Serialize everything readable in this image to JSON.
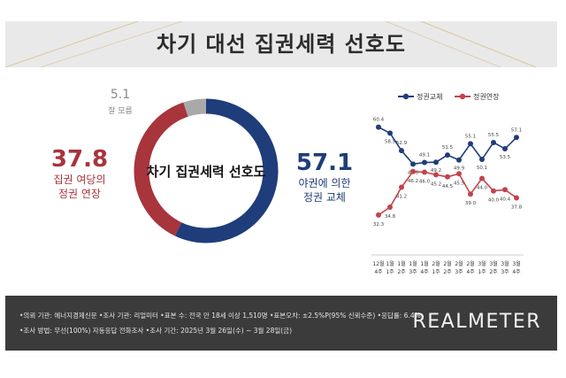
{
  "title": "차기 대선 집권세력 선호도",
  "donut": {
    "center_label": "차기 집권세력 선호도",
    "segments": [
      {
        "name": "야권에 의한 정권 교체",
        "value": 57.1,
        "color": "#1f3d7a"
      },
      {
        "name": "집권 여당의 정권 연장",
        "value": 37.8,
        "color": "#a8343c"
      },
      {
        "name": "잘 모름",
        "value": 5.1,
        "color": "#a9a9a9"
      }
    ],
    "labels": {
      "change_value": "57.1",
      "change_line1": "야권에 의한",
      "change_line2": "정권 교체",
      "extend_value": "37.8",
      "extend_line1": "집권 여당의",
      "extend_line2": "정권 연장",
      "unknown_value": "5.1",
      "unknown_line1": "잘 모름"
    }
  },
  "chart_data": {
    "type": "line",
    "legend_position": "top-right",
    "x": [
      "12월 4주",
      "1월 1주",
      "1월 2주",
      "1월 3주",
      "1월 4주",
      "2월 1주",
      "2월 2주",
      "2월 3주",
      "2월 4주",
      "3월 1주",
      "3월 2주",
      "3월 3주",
      "3월 4주"
    ],
    "x_top": [
      "12월",
      "1월",
      "1월",
      "1월",
      "1월",
      "2월",
      "2월",
      "2월",
      "2월",
      "3월",
      "3월",
      "3월",
      "3월"
    ],
    "x_bottom": [
      "4주",
      "1주",
      "2주",
      "3주",
      "4주",
      "1주",
      "2주",
      "3주",
      "4주",
      "1주",
      "2주",
      "3주",
      "4주"
    ],
    "ylim": [
      30,
      62
    ],
    "series": [
      {
        "name": "정권교체",
        "color": "#1f3d7a",
        "values": [
          60.4,
          58.5,
          52.9,
          48.6,
          49.1,
          49.2,
          51.5,
          49.9,
          55.1,
          50.1,
          55.5,
          53.5,
          57.1
        ],
        "labels": [
          "60.4",
          "58.5",
          "52.9",
          "48.6",
          "49.1",
          "49.2",
          "51.5",
          "49.9",
          "55.1",
          "50.1",
          "55.5",
          "53.5",
          "57.1"
        ]
      },
      {
        "name": "정권연장",
        "color": "#c3434b",
        "values": [
          32.3,
          34.8,
          41.2,
          46.2,
          46.0,
          45.2,
          44.5,
          45.5,
          39.0,
          44.0,
          40.0,
          40.4,
          37.8
        ],
        "labels": [
          "32.3",
          "34.8",
          "41.2",
          "46.2",
          "46.0",
          "45.2",
          "44.5",
          "45.5",
          "39.0",
          "44.0",
          "40.0",
          "40.4",
          "37.8"
        ]
      }
    ]
  },
  "footer": {
    "line1": "•의뢰 기관: 에너지경제신문 •조사 기관: 리얼미터 •표본 수: 전국 만 18세 이상 1,510명 •표본오차: ±2.5%P(95% 신뢰수준) •응답률: 6.4%",
    "line2": "•조사 방법: 무선(100%) 자동응답 전화조사 •조사 기간: 2025년 3월 26일(수) ~ 3월 28일(금)",
    "brand": "REALMETER"
  }
}
